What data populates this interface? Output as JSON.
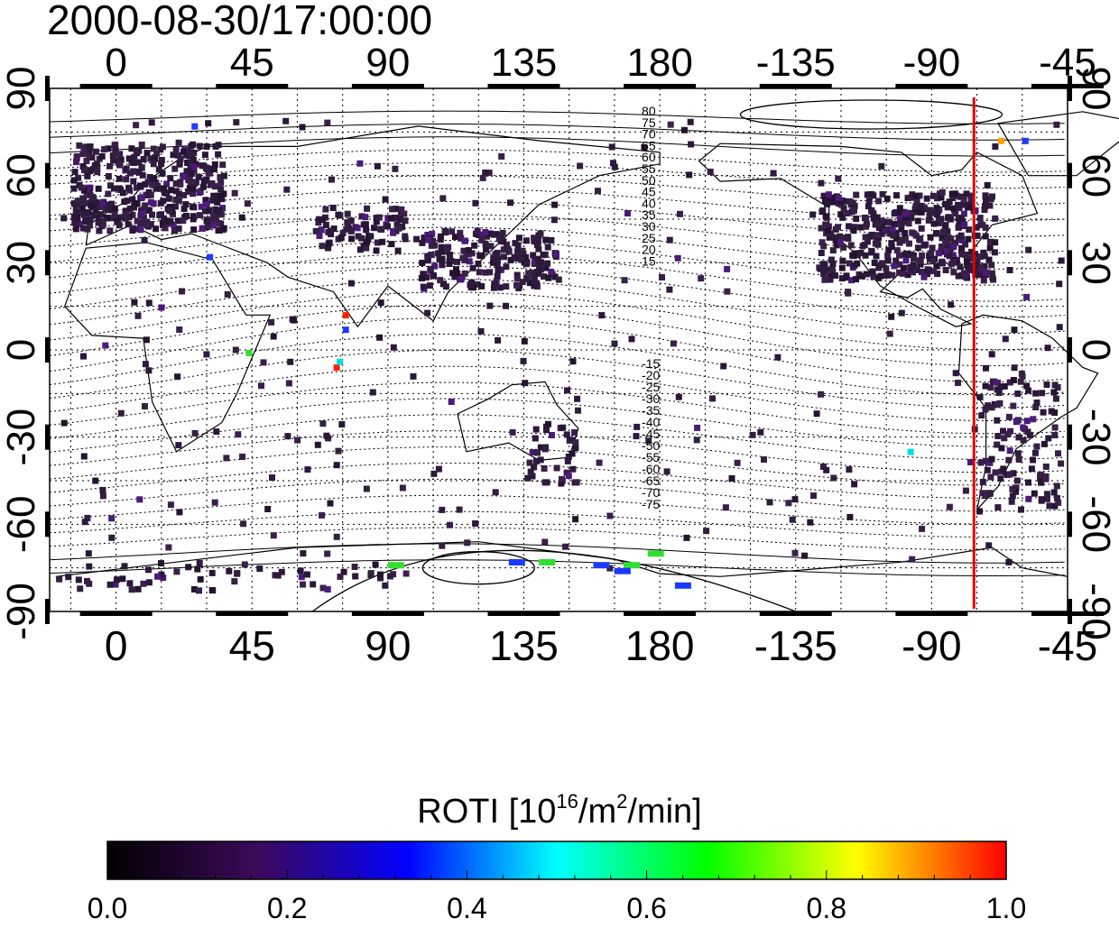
{
  "timestamp": "2000-08-30/17:00:00",
  "axes": {
    "lon_ticks_top": [
      "0",
      "45",
      "90",
      "135",
      "180",
      "-135",
      "-90",
      "-45"
    ],
    "lon_ticks_bottom": [
      "0",
      "45",
      "90",
      "135",
      "180",
      "-135",
      "-90",
      "-45"
    ],
    "lat_ticks_left": [
      "90",
      "60",
      "30",
      "0",
      "-30",
      "-60",
      "-90"
    ],
    "lat_ticks_right": [
      "90",
      "60",
      "30",
      "0",
      "-30",
      "-60",
      "-90"
    ],
    "lon_values": [
      0,
      45,
      90,
      135,
      180,
      225,
      270,
      315
    ],
    "lat_values": [
      90,
      60,
      30,
      0,
      -30,
      -60,
      -90
    ],
    "lon_range": [
      -22,
      315
    ],
    "lat_range": [
      -90,
      90
    ]
  },
  "magnetic_latitude_labels_north": [
    "80",
    "75",
    "70",
    "65",
    "60",
    "55",
    "50",
    "45",
    "40",
    "35",
    "30",
    "25",
    "20",
    "15"
  ],
  "magnetic_latitude_labels_south": [
    "-15",
    "-20",
    "-25",
    "-30",
    "-35",
    "-40",
    "-45",
    "-50",
    "-55",
    "-60",
    "-65",
    "-70",
    "-75"
  ],
  "terminator": {
    "longitude": -76,
    "color": "#e00000"
  },
  "colorbar": {
    "title": "ROTI  [10",
    "title_sup": "16",
    "title_mid": "/m",
    "title_sup2": "2",
    "title_end": "/min]",
    "tick_labels": [
      "0.0",
      "0.2",
      "0.4",
      "0.6",
      "0.8",
      "1.0"
    ],
    "tick_values": [
      0.0,
      0.2,
      0.4,
      0.6,
      0.8,
      1.0
    ],
    "stops": [
      "#000000",
      "#3c0a5a",
      "#0000ff",
      "#00ffff",
      "#00ff00",
      "#ffff00",
      "#ff0000"
    ]
  },
  "colors": {
    "low_roti": "#2e1a3e",
    "purple": "#4b1a7a",
    "blue": "#1a3aff",
    "cyan": "#00e0e0",
    "green": "#30e030",
    "orange": "#ff9f00",
    "red": "#ff2000"
  }
}
